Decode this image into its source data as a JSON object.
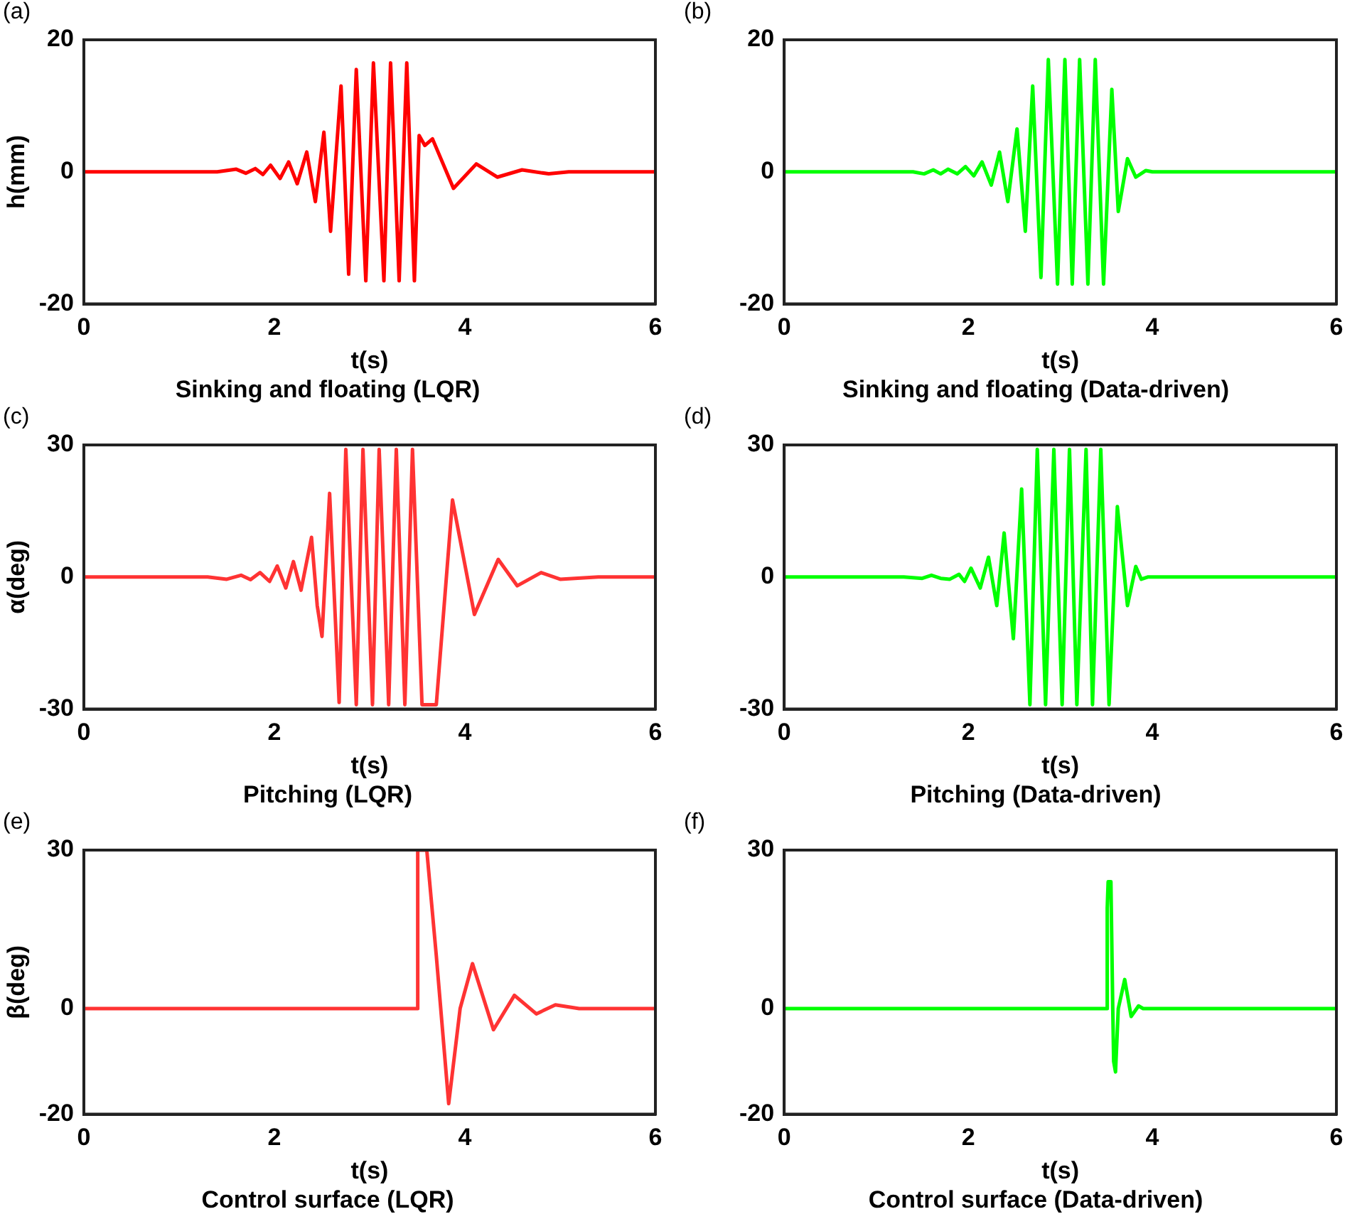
{
  "chart_data": [
    {
      "type": "line",
      "title": "Sinking and floating (LQR)",
      "xlabel": "t(s)",
      "ylabel": "h(mm)",
      "annotations": [
        "(a)"
      ],
      "color": "#ff0000",
      "marker": "none",
      "grid": false,
      "xlim": [
        0,
        6
      ],
      "xticks": [
        0,
        2,
        4,
        6
      ],
      "ylim": [
        -20,
        20
      ],
      "yticks": [
        -20,
        0,
        20
      ],
      "x": [
        0,
        1.4,
        1.6,
        1.7,
        1.8,
        1.88,
        1.96,
        2.06,
        2.15,
        2.24,
        2.34,
        2.43,
        2.52,
        2.59,
        2.7,
        2.78,
        2.86,
        2.96,
        3.04,
        3.15,
        3.22,
        3.31,
        3.39,
        3.47,
        3.52,
        3.58,
        3.66,
        3.88,
        4.12,
        4.34,
        4.6,
        4.88,
        5.09,
        6
      ],
      "values": [
        0,
        0,
        0.4,
        -0.2,
        0.5,
        -0.4,
        1,
        -1,
        1.5,
        -1.8,
        3,
        -4.5,
        6,
        -9,
        13,
        -15.5,
        15.5,
        -16.5,
        16.5,
        -16.5,
        16.5,
        -16.5,
        16.5,
        -16.5,
        5.5,
        4,
        5,
        -2.5,
        1.2,
        -0.8,
        0.3,
        -0.3,
        0,
        0
      ]
    },
    {
      "type": "line",
      "title": "Sinking and floating (Data-driven)",
      "xlabel": "t(s)",
      "annotations": [
        "(b)"
      ],
      "color": "#00ff00",
      "marker": "none",
      "grid": false,
      "xlim": [
        0,
        6
      ],
      "xticks": [
        0,
        2,
        4,
        6
      ],
      "ylim": [
        -20,
        20
      ],
      "yticks": [
        -20,
        0,
        20
      ],
      "x": [
        0,
        1.4,
        1.52,
        1.62,
        1.7,
        1.78,
        1.88,
        1.97,
        2.06,
        2.15,
        2.25,
        2.34,
        2.43,
        2.53,
        2.62,
        2.7,
        2.79,
        2.87,
        2.97,
        3.05,
        3.13,
        3.21,
        3.3,
        3.38,
        3.47,
        3.56,
        3.63,
        3.73,
        3.82,
        3.93,
        4,
        6
      ],
      "values": [
        0,
        0,
        -0.3,
        0.3,
        -0.3,
        0.4,
        -0.3,
        0.8,
        -0.6,
        1.5,
        -2,
        3,
        -4.5,
        6.5,
        -9,
        13,
        -16,
        17,
        -17,
        17,
        -17,
        17,
        -17,
        17,
        -17,
        12.5,
        -6,
        2,
        -0.8,
        0.2,
        0,
        0
      ]
    },
    {
      "type": "line",
      "title": "Pitching (LQR)",
      "xlabel": "t(s)",
      "ylabel": "α(deg)",
      "annotations": [
        "(c)"
      ],
      "color": "#ff3333",
      "marker": "none",
      "grid": false,
      "xlim": [
        0,
        6
      ],
      "xticks": [
        0,
        2,
        4,
        6
      ],
      "ylim": [
        -30,
        30
      ],
      "yticks": [
        -30,
        0,
        30
      ],
      "x": [
        0,
        1.3,
        1.5,
        1.65,
        1.75,
        1.85,
        1.95,
        2.03,
        2.12,
        2.2,
        2.28,
        2.39,
        2.45,
        2.5,
        2.58,
        2.68,
        2.75,
        2.86,
        2.93,
        3.03,
        3.1,
        3.2,
        3.28,
        3.37,
        3.45,
        3.55,
        3.7,
        3.87,
        4.1,
        4.35,
        4.55,
        4.8,
        5,
        5.4,
        6
      ],
      "values": [
        0,
        0,
        -0.5,
        0.4,
        -0.6,
        1,
        -1,
        2.5,
        -2.5,
        3.5,
        -3,
        9,
        -6.5,
        -13.5,
        19,
        -28.5,
        29,
        -29,
        29,
        -29,
        29,
        -29,
        29,
        -29,
        29,
        -29,
        -29,
        17.5,
        -8.5,
        4,
        -2,
        1,
        -0.5,
        0,
        0
      ]
    },
    {
      "type": "line",
      "title": "Pitching (Data-driven)",
      "xlabel": "t(s)",
      "annotations": [
        "(d)"
      ],
      "color": "#00ff00",
      "marker": "none",
      "grid": false,
      "xlim": [
        0,
        6
      ],
      "xticks": [
        0,
        2,
        4,
        6
      ],
      "ylim": [
        -30,
        30
      ],
      "yticks": [
        -30,
        0,
        30
      ],
      "x": [
        0,
        1.3,
        1.5,
        1.6,
        1.7,
        1.8,
        1.9,
        1.96,
        2.03,
        2.13,
        2.22,
        2.31,
        2.39,
        2.49,
        2.58,
        2.67,
        2.75,
        2.84,
        2.93,
        3.02,
        3.1,
        3.18,
        3.28,
        3.35,
        3.44,
        3.53,
        3.62,
        3.73,
        3.82,
        3.88,
        3.95,
        6
      ],
      "values": [
        0,
        0,
        -0.3,
        0.4,
        -0.3,
        -0.5,
        0.6,
        -1,
        2,
        -2.5,
        4.5,
        -6.5,
        10,
        -14,
        20,
        -29,
        29,
        -29,
        29,
        -29,
        29,
        -29,
        29,
        -29,
        29,
        -29,
        16,
        -6.5,
        2.4,
        -0.5,
        0,
        0
      ]
    },
    {
      "type": "line",
      "title": "Control surface (LQR)",
      "xlabel": "t(s)",
      "ylabel": "β(deg)",
      "annotations": [
        "(e)"
      ],
      "color": "#ff3333",
      "marker": "none",
      "grid": false,
      "xlim": [
        0,
        6
      ],
      "xticks": [
        0,
        2,
        4,
        6
      ],
      "ylim": [
        -20,
        30
      ],
      "yticks": [
        -20,
        0,
        30
      ],
      "x": [
        0,
        3.5,
        3.505,
        3.6,
        3.7,
        3.83,
        3.95,
        4.08,
        4.3,
        4.52,
        4.75,
        4.95,
        5.2,
        6
      ],
      "values": [
        0,
        0,
        30,
        30,
        10,
        -18,
        0,
        8.5,
        -4,
        2.5,
        -1,
        0.7,
        0,
        0
      ]
    },
    {
      "type": "line",
      "title": "Control surface (Data-driven)",
      "xlabel": "t(s)",
      "annotations": [
        "(f)"
      ],
      "color": "#00ff00",
      "marker": "none",
      "grid": false,
      "xlim": [
        0,
        6
      ],
      "xticks": [
        0,
        2,
        4,
        6
      ],
      "ylim": [
        -20,
        30
      ],
      "yticks": [
        -20,
        0,
        30
      ],
      "x": [
        0,
        3.5,
        3.51,
        3.52,
        3.55,
        3.57,
        3.58,
        3.6,
        3.63,
        3.7,
        3.77,
        3.85,
        3.9,
        6
      ],
      "values": [
        0,
        0,
        19,
        24,
        24,
        0,
        -10,
        -12,
        0,
        5.5,
        -1.5,
        0.5,
        0,
        0
      ]
    }
  ]
}
